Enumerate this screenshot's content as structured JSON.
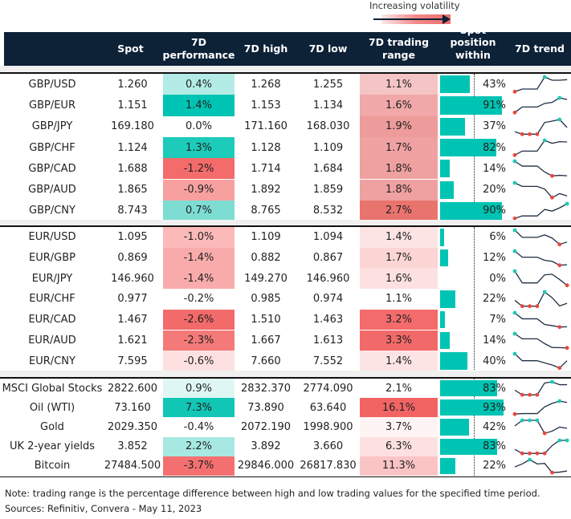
{
  "legend": {
    "label": "Increasing volatility"
  },
  "header": {
    "name": "",
    "spot": "Spot",
    "perf": "7D performance",
    "high": "7D high",
    "low": "7D low",
    "range": "7D trading range",
    "position": "Spot position within range",
    "trend": "7D trend"
  },
  "colors": {
    "header": "#0d2137",
    "teal": "#00c4b3",
    "min_marker": "#e8473c",
    "max_marker": "#1ec8b4"
  },
  "groups": [
    {
      "rows": [
        {
          "name": "GBP/USD",
          "spot": "1.260",
          "perf": "0.4%",
          "perf_bg": "#b3ece6",
          "high": "1.268",
          "low": "1.255",
          "range": "1.1%",
          "range_bg": "#f5c4c4",
          "position": 43,
          "trend": [
            0,
            0.18,
            0.18,
            0.18,
            1,
            0.78,
            0.78,
            0.82
          ]
        },
        {
          "name": "GBP/EUR",
          "spot": "1.151",
          "perf": "1.4%",
          "perf_bg": "#00c4b3",
          "high": "1.153",
          "low": "1.134",
          "range": "1.6%",
          "range_bg": "#f0a8a8",
          "position": 91,
          "trend": [
            0,
            0.38,
            0.38,
            0.38,
            0.62,
            0.69,
            1,
            0.89
          ]
        },
        {
          "name": "GBP/JPY",
          "spot": "169.180",
          "perf": "0.0%",
          "perf_bg": "#ffffff",
          "high": "171.160",
          "low": "168.030",
          "range": "1.9%",
          "range_bg": "#ee9b9b",
          "position": 37,
          "trend": [
            0.17,
            0,
            0,
            0,
            0.8,
            0.89,
            1,
            0.46
          ]
        },
        {
          "name": "GBP/CHF",
          "spot": "1.124",
          "perf": "1.3%",
          "perf_bg": "#1ccbb9",
          "high": "1.128",
          "low": "1.109",
          "range": "1.7%",
          "range_bg": "#f0a2a2",
          "position": 82,
          "trend": [
            0,
            0.27,
            0.27,
            0.27,
            1,
            0.8,
            0.91,
            0.89
          ]
        },
        {
          "name": "GBP/CAD",
          "spot": "1.688",
          "perf": "-1.2%",
          "perf_bg": "#f36b6b",
          "high": "1.714",
          "low": "1.684",
          "range": "1.8%",
          "range_bg": "#efa0a0",
          "position": 14,
          "trend": [
            1,
            0.67,
            0.67,
            0.67,
            0.27,
            0,
            0.04,
            0.01
          ]
        },
        {
          "name": "GBP/AUD",
          "spot": "1.865",
          "perf": "-0.9%",
          "perf_bg": "#f7a0a0",
          "high": "1.892",
          "low": "1.859",
          "range": "1.8%",
          "range_bg": "#efa0a0",
          "position": 20,
          "trend": [
            1,
            0.76,
            0.76,
            0.76,
            0.58,
            0,
            0.27,
            0.11
          ]
        },
        {
          "name": "GBP/CNY",
          "spot": "8.743",
          "perf": "0.7%",
          "perf_bg": "#7dddd3",
          "high": "8.765",
          "low": "8.532",
          "range": "2.7%",
          "range_bg": "#e9746e",
          "position": 90,
          "trend": [
            0,
            0.17,
            0.17,
            0.17,
            0.61,
            0.5,
            0.72,
            1
          ]
        }
      ]
    },
    {
      "rows": [
        {
          "name": "EUR/USD",
          "spot": "1.095",
          "perf": "-1.0%",
          "perf_bg": "#fbb9b9",
          "high": "1.109",
          "low": "1.094",
          "range": "1.4%",
          "range_bg": "#fde4e4",
          "position": 6,
          "trend": [
            1,
            0.5,
            0.5,
            0.5,
            0.67,
            0.45,
            0,
            0.17
          ]
        },
        {
          "name": "EUR/GBP",
          "spot": "0.869",
          "perf": "-1.4%",
          "perf_bg": "#f9abab",
          "high": "0.882",
          "low": "0.867",
          "range": "1.7%",
          "range_bg": "#fcd5d5",
          "position": 12,
          "trend": [
            1,
            0.57,
            0.57,
            0.57,
            0.35,
            0.28,
            0,
            0.04
          ]
        },
        {
          "name": "EUR/JPY",
          "spot": "146.960",
          "perf": "-1.4%",
          "perf_bg": "#f9abab",
          "high": "149.270",
          "low": "146.960",
          "range": "1.6%",
          "range_bg": "#fde0e0",
          "position": 0,
          "trend": [
            1,
            0.17,
            0.17,
            0.17,
            0.74,
            0.78,
            0.41,
            0
          ]
        },
        {
          "name": "EUR/CHF",
          "spot": "0.977",
          "perf": "-0.2%",
          "perf_bg": "#ffffff",
          "high": "0.985",
          "low": "0.974",
          "range": "1.1%",
          "range_bg": "#ffffff",
          "position": 22,
          "trend": [
            0.41,
            0,
            0,
            0,
            1,
            0.6,
            0.02,
            0.2
          ]
        },
        {
          "name": "EUR/CAD",
          "spot": "1.467",
          "perf": "-2.6%",
          "perf_bg": "#f26a6a",
          "high": "1.510",
          "low": "1.463",
          "range": "3.2%",
          "range_bg": "#f36b6b",
          "position": 7,
          "trend": [
            1,
            0.58,
            0.58,
            0.58,
            0.18,
            0.1,
            0,
            0.02
          ]
        },
        {
          "name": "EUR/AUD",
          "spot": "1.621",
          "perf": "-2.3%",
          "perf_bg": "#f47a7a",
          "high": "1.667",
          "low": "1.613",
          "range": "3.3%",
          "range_bg": "#f26969",
          "position": 14,
          "trend": [
            1,
            0.64,
            0.64,
            0.64,
            0.3,
            0.03,
            0.02,
            0
          ]
        },
        {
          "name": "EUR/CNY",
          "spot": "7.595",
          "perf": "-0.6%",
          "perf_bg": "#fde1e1",
          "high": "7.660",
          "low": "7.552",
          "range": "1.4%",
          "range_bg": "#fde4e4",
          "position": 40,
          "trend": [
            1,
            0.51,
            0.51,
            0.51,
            0.36,
            0.21,
            0,
            0.51
          ]
        }
      ]
    },
    {
      "rows": [
        {
          "name": "MSCI Global Stocks",
          "spot": "2822.600",
          "perf": "0.9%",
          "perf_bg": "#dff7f4",
          "high": "2832.370",
          "low": "2774.090",
          "range": "2.1%",
          "range_bg": "#ffffff",
          "position": 83,
          "trend": [
            0.36,
            0,
            0,
            0,
            0.91,
            1,
            0.78,
            0.78
          ]
        },
        {
          "name": "Oil (WTI)",
          "spot": "73.160",
          "perf": "7.3%",
          "perf_bg": "#12c6b5",
          "high": "73.890",
          "low": "63.640",
          "range": "16.1%",
          "range_bg": "#f26464",
          "position": 93,
          "trend": [
            0,
            0.04,
            0.04,
            0.04,
            0.56,
            0.82,
            1,
            0.89
          ]
        },
        {
          "name": "Gold",
          "spot": "2029.350",
          "perf": "-0.4%",
          "perf_bg": "#ffffff",
          "high": "2072.190",
          "low": "1998.900",
          "range": "3.7%",
          "range_bg": "#fff4f4",
          "position": 42,
          "trend": [
            0.57,
            1,
            1,
            1,
            0,
            0.17,
            0.48,
            0.39
          ]
        },
        {
          "name": "UK 2-year yields",
          "spot": "3.852",
          "perf": "2.2%",
          "perf_bg": "#a7e9e2",
          "high": "3.892",
          "low": "3.660",
          "range": "6.3%",
          "range_bg": "#fde0e0",
          "position": 83,
          "trend": [
            0.31,
            0,
            0,
            0,
            0,
            0.6,
            1,
            1
          ]
        },
        {
          "name": "Bitcoin",
          "spot": "27484.500",
          "perf": "-3.7%",
          "perf_bg": "#f47070",
          "high": "29846.000",
          "low": "26817.830",
          "range": "11.3%",
          "range_bg": "#fbc4c4",
          "position": 22,
          "trend": [
            0.44,
            0.67,
            1,
            0.67,
            0.71,
            0,
            0.04,
            0.13
          ]
        }
      ]
    }
  ],
  "footer": {
    "note": "Note: trading range is the percentage difference between high and low trading values for the specified time period.",
    "sources": "Sources: Refinitiv, Convera - May 11, 2023"
  }
}
